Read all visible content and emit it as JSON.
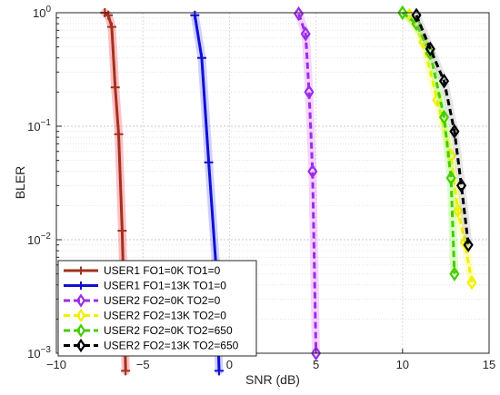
{
  "chart_data": {
    "type": "line",
    "title": "",
    "xlabel": "SNR (dB)",
    "ylabel": "BLER",
    "xlim": [
      -10,
      15
    ],
    "ylim": [
      0.001,
      1
    ],
    "yscale": "log",
    "grid": true,
    "legend_position": "bottom-left",
    "xticks": [
      -10,
      -5,
      0,
      5,
      10,
      15
    ],
    "xtick_labels": [
      "−10",
      "−5",
      "0",
      "5",
      "10",
      "15"
    ],
    "yticks": [
      0.001,
      0.01,
      0.1,
      1
    ],
    "ytick_labels": [
      {
        "base": "10",
        "exp": "−3"
      },
      {
        "base": "10",
        "exp": "−2"
      },
      {
        "base": "10",
        "exp": "−1"
      },
      {
        "base": "10",
        "exp": "0"
      }
    ],
    "series": [
      {
        "name": "USER1 FO1=0K TO1=0",
        "color": "#a0321e",
        "halo": "#ff3040",
        "dash": "solid",
        "marker": "plus",
        "x": [
          -7.2,
          -7.0,
          -6.8,
          -6.6,
          -6.4,
          -6.2,
          -6.0
        ],
        "y": [
          1.0,
          0.95,
          0.75,
          0.22,
          0.085,
          0.012,
          0.0007
        ]
      },
      {
        "name": "USER1 FO1=13K TO1=0",
        "color": "#1010d0",
        "halo": "#6060ff",
        "dash": "solid",
        "marker": "plus",
        "x": [
          -2.0,
          -1.6,
          -1.2,
          -0.8,
          -0.6
        ],
        "y": [
          0.95,
          0.4,
          0.048,
          0.0065,
          0.0007
        ]
      },
      {
        "name": "USER2 FO2=0K TO2=0",
        "color": "#9a2ee8",
        "halo": "#e070ff",
        "dash": "dashed",
        "marker": "diamond",
        "x": [
          4.0,
          4.4,
          4.6,
          4.8,
          5.0
        ],
        "y": [
          0.98,
          0.65,
          0.2,
          0.04,
          0.001
        ]
      },
      {
        "name": "USER2 FO2=13K TO2=0",
        "color": "#f0f000",
        "halo": "#ffff40",
        "dash": "dashed",
        "marker": "diamond",
        "x": [
          10.4,
          11.2,
          12.0,
          12.8,
          13.2,
          13.6,
          14.0
        ],
        "y": [
          0.95,
          0.55,
          0.17,
          0.055,
          0.018,
          0.0095,
          0.0042
        ]
      },
      {
        "name": "USER2 FO2=0K TO2=650",
        "color": "#44cc00",
        "halo": "#90ff50",
        "dash": "dashed",
        "marker": "diamond",
        "x": [
          10.0,
          10.8,
          11.6,
          12.4,
          12.8,
          13.0
        ],
        "y": [
          1.0,
          0.8,
          0.44,
          0.12,
          0.035,
          0.005
        ]
      },
      {
        "name": "USER2 FO2=13K TO2=650",
        "color": "#000000",
        "halo": "#aaaaaa",
        "dash": "dashed",
        "marker": "diamond",
        "x": [
          10.8,
          11.6,
          12.4,
          13.0,
          13.4,
          13.8
        ],
        "y": [
          0.95,
          0.48,
          0.25,
          0.09,
          0.03,
          0.009
        ]
      }
    ]
  }
}
